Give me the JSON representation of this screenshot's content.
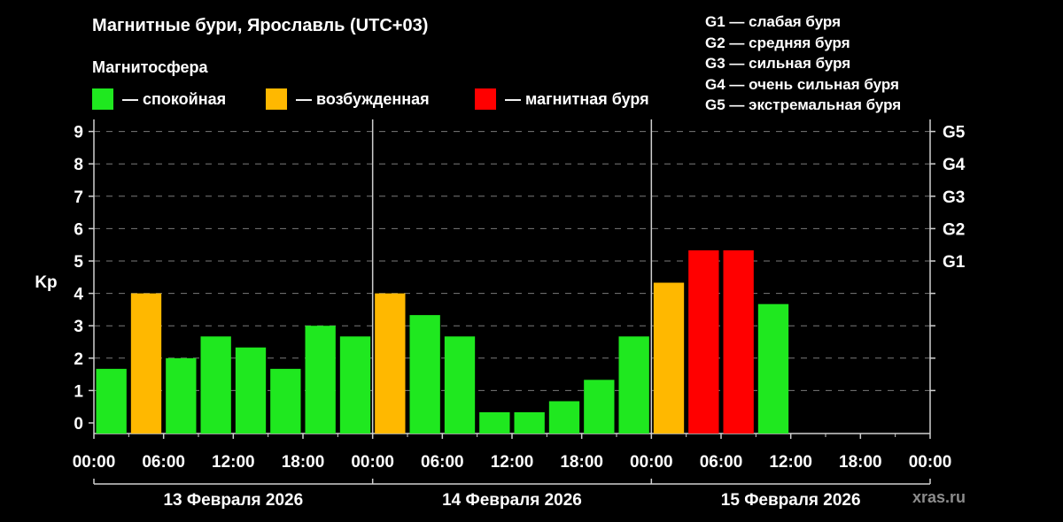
{
  "title": "Магнитные бури, Ярославль (UTC+03)",
  "legend": {
    "heading": "Магнитосфера",
    "items": [
      {
        "label": "— спокойная",
        "color": "#1fe81f"
      },
      {
        "label": "— возбужденная",
        "color": "#ffb800"
      },
      {
        "label": "— магнитная буря",
        "color": "#ff0000"
      }
    ]
  },
  "g_scale": [
    "G1 — слабая буря",
    "G2 — средняя буря",
    "G3 — сильная буря",
    "G4 — очень сильная буря",
    "G5 — экстремальная буря"
  ],
  "watermark": "xras.ru",
  "chart_data": {
    "type": "bar",
    "ylabel": "Kp",
    "ylim": [
      0,
      9
    ],
    "yticks": [
      "0",
      "1",
      "2",
      "3",
      "4",
      "5",
      "6",
      "7",
      "8",
      "9"
    ],
    "right_axis": [
      {
        "label": "G1",
        "kp": 5
      },
      {
        "label": "G2",
        "kp": 6
      },
      {
        "label": "G3",
        "kp": 7
      },
      {
        "label": "G4",
        "kp": 8
      },
      {
        "label": "G5",
        "kp": 9
      }
    ],
    "xtick_labels": [
      "00:00",
      "06:00",
      "12:00",
      "18:00",
      "00:00",
      "06:00",
      "12:00",
      "18:00",
      "00:00",
      "06:00",
      "12:00",
      "18:00",
      "00:00"
    ],
    "days": [
      "13 Февраля 2026",
      "14 Февраля 2026",
      "15 Февраля 2026"
    ],
    "intervals_per_day": 8,
    "grid": true,
    "values": [
      1.67,
      4.0,
      2.0,
      2.67,
      2.33,
      1.67,
      3.0,
      2.67,
      4.0,
      3.33,
      2.67,
      0.33,
      0.33,
      0.67,
      1.33,
      2.67,
      4.33,
      5.33,
      5.33,
      3.67
    ],
    "levels": [
      "calm",
      "active",
      "calm",
      "calm",
      "calm",
      "calm",
      "calm",
      "calm",
      "active",
      "calm",
      "calm",
      "calm",
      "calm",
      "calm",
      "calm",
      "calm",
      "active",
      "storm",
      "storm",
      "calm"
    ],
    "level_colors": {
      "calm": "#1fe81f",
      "active": "#ffb800",
      "storm": "#ff0000"
    }
  }
}
